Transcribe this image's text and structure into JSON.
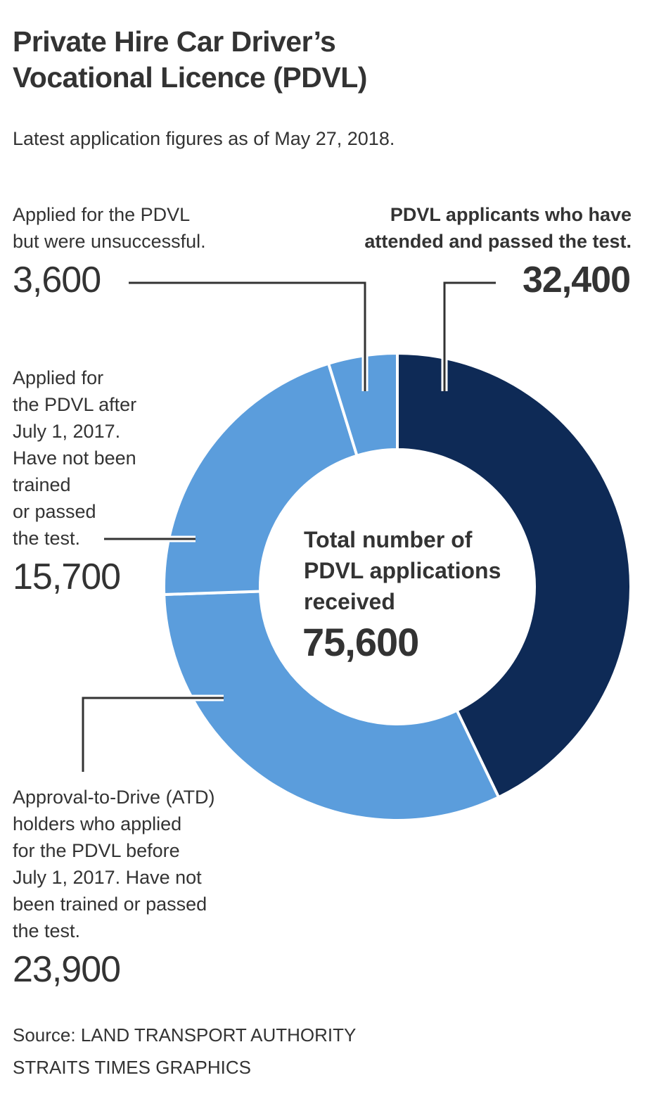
{
  "title_line1": "Private Hire Car Driver’s",
  "title_line2": "Vocational Licence (PDVL)",
  "subtitle": "Latest application figures as of May 27, 2018.",
  "center": {
    "label_line1": "Total number of",
    "label_line2": "PDVL applications",
    "label_line3": "received",
    "value": "75,600"
  },
  "labels": {
    "passed": {
      "line1": "PDVL applicants who have",
      "line2": "attended and passed the test.",
      "value": "32,400"
    },
    "unsuccessful": {
      "line1": "Applied for the PDVL",
      "line2": "but were unsuccessful.",
      "value": "3,600"
    },
    "after": {
      "line1": "Applied for",
      "line2": "the PDVL after",
      "line3": "July 1, 2017.",
      "line4": "Have not been",
      "line5": "trained",
      "line6": "or passed",
      "line7": "the test.",
      "value": "15,700"
    },
    "atd": {
      "line1": "Approval-to-Drive (ATD)",
      "line2": "holders who applied",
      "line3": "for the PDVL before",
      "line4": "July 1, 2017. Have not",
      "line5": "been trained or passed",
      "line6": "the test.",
      "value": "23,900"
    }
  },
  "source": "Source: LAND TRANSPORT AUTHORITY",
  "credit": "STRAITS TIMES GRAPHICS",
  "chart_data": {
    "type": "pie",
    "donut": true,
    "title": "Private Hire Car Driver’s Vocational Licence (PDVL)",
    "total": 75600,
    "slices": [
      {
        "key": "passed",
        "value": 32400,
        "color": "#0e2a56"
      },
      {
        "key": "atd",
        "value": 23900,
        "color": "#5b9ddc"
      },
      {
        "key": "after",
        "value": 15700,
        "color": "#5b9ddc"
      },
      {
        "key": "unsuccessful",
        "value": 3600,
        "color": "#5b9ddc"
      }
    ]
  }
}
